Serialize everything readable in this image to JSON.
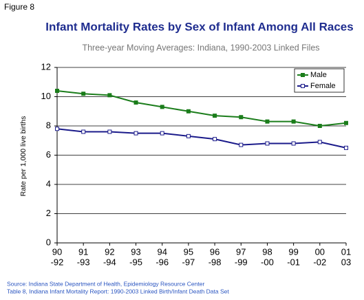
{
  "chart_data": {
    "type": "line",
    "figure_label": "Figure 8",
    "title": "Infant Mortality Rates by Sex of Infant Among All Races",
    "subtitle": "Three-year Moving Averages: Indiana, 1990-2003 Linked Files",
    "y_label": "Rate per 1,000 live births",
    "categories": [
      [
        "90",
        "-92"
      ],
      [
        "91",
        "-93"
      ],
      [
        "92",
        "-94"
      ],
      [
        "93",
        "-95"
      ],
      [
        "94",
        "-96"
      ],
      [
        "95",
        "-97"
      ],
      [
        "96",
        "-98"
      ],
      [
        "97",
        "-99"
      ],
      [
        "98",
        "-00"
      ],
      [
        "99",
        "-01"
      ],
      [
        "00",
        "-02"
      ],
      [
        "01",
        "03"
      ]
    ],
    "series": [
      {
        "name": "Male",
        "color": "#1b7d1b",
        "marker": "filled",
        "values": [
          10.4,
          10.2,
          10.1,
          9.6,
          9.3,
          9.0,
          8.7,
          8.6,
          8.3,
          8.3,
          8.0,
          8.2
        ]
      },
      {
        "name": "Female",
        "color": "#1a1a8a",
        "marker": "hollow",
        "values": [
          7.8,
          7.6,
          7.6,
          7.5,
          7.5,
          7.3,
          7.1,
          6.7,
          6.8,
          6.8,
          6.9,
          6.5
        ]
      }
    ],
    "ylim": [
      0,
      12
    ],
    "yticks": [
      0,
      2,
      4,
      6,
      8,
      10,
      12
    ],
    "grid": true,
    "legend": "top-right",
    "source": [
      "Source: Indiana State Department of Health, Epidemiology Resource Center",
      "Table 8, Indiana Infant Mortality Report: 1990-2003 Linked Birth/Infant Death Data Set"
    ]
  }
}
